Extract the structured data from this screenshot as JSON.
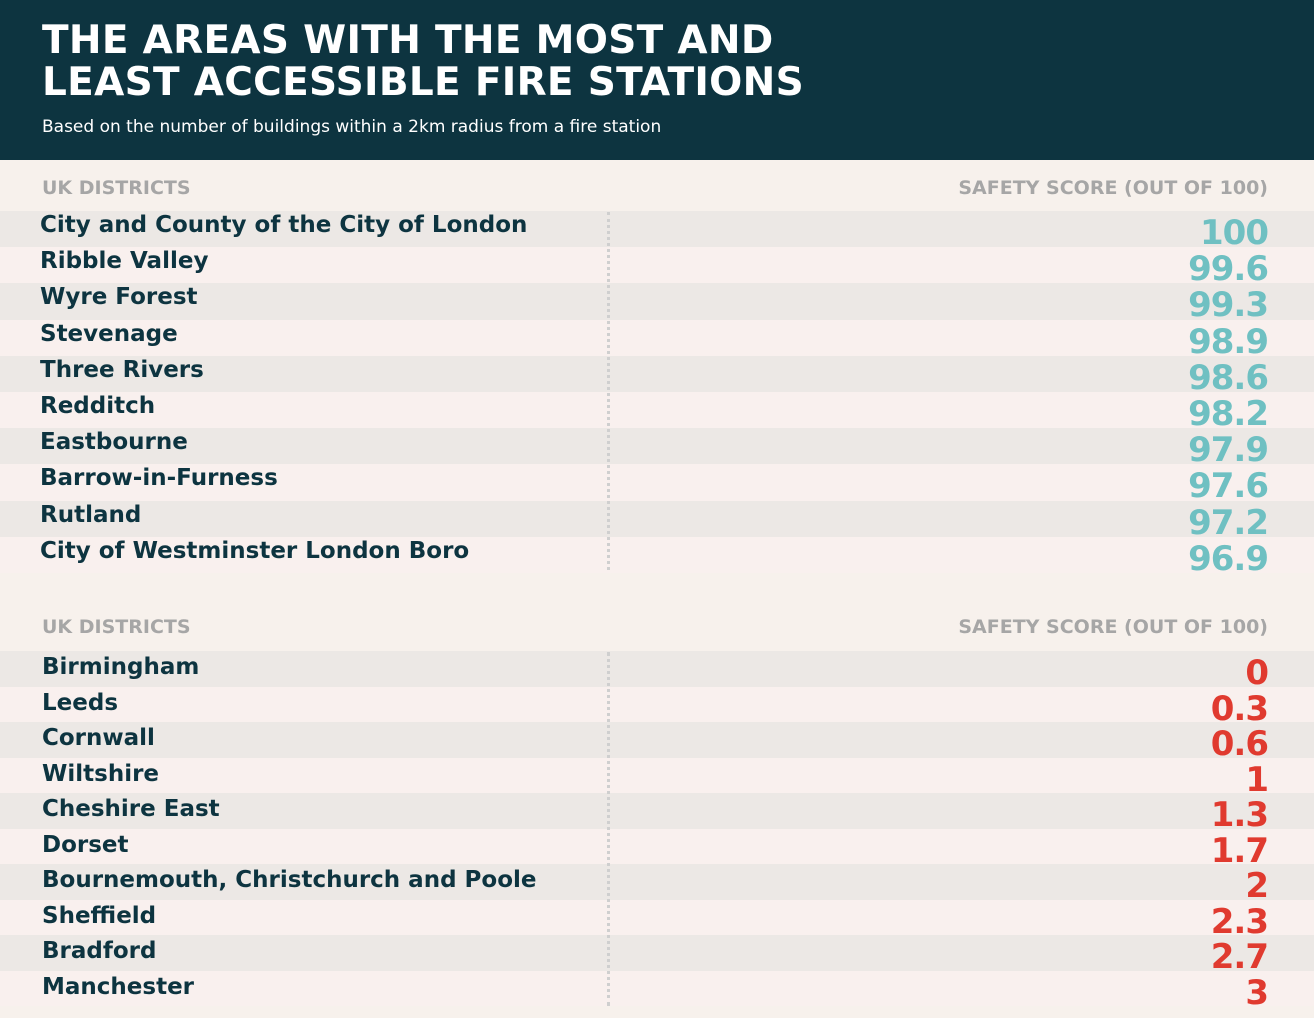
{
  "header": {
    "title_line1": "THE AREAS WITH THE MOST AND",
    "title_line2": "LEAST ACCESSIBLE FIRE STATIONS",
    "subtitle": "Based on the number of buildings within a 2km radius from a fire station"
  },
  "colors": {
    "header_bg": "#0d3440",
    "district_text": "#0d3440",
    "top_score": "#6fc0c2",
    "bottom_score": "#e03a2f",
    "column_header": "#a6a6a6"
  },
  "chart_data": [
    {
      "type": "table",
      "columns": [
        "UK DISTRICTS",
        "SAFETY SCORE (OUT OF 100)"
      ],
      "rows": [
        {
          "district": "City and County of the City of London",
          "score": "100"
        },
        {
          "district": "Ribble Valley",
          "score": "99.6"
        },
        {
          "district": "Wyre Forest",
          "score": "99.3"
        },
        {
          "district": "Stevenage",
          "score": "98.9"
        },
        {
          "district": "Three Rivers",
          "score": "98.6"
        },
        {
          "district": "Redditch",
          "score": "98.2"
        },
        {
          "district": "Eastbourne",
          "score": "97.9"
        },
        {
          "district": "Barrow-in-Furness",
          "score": "97.6"
        },
        {
          "district": "Rutland",
          "score": "97.2"
        },
        {
          "district": "City of Westminster London Boro",
          "score": "96.9"
        }
      ]
    },
    {
      "type": "table",
      "columns": [
        "UK DISTRICTS",
        "SAFETY SCORE (OUT OF 100)"
      ],
      "rows": [
        {
          "district": "Birmingham",
          "score": "0"
        },
        {
          "district": "Leeds",
          "score": "0.3"
        },
        {
          "district": "Cornwall",
          "score": "0.6"
        },
        {
          "district": "Wiltshire",
          "score": "1"
        },
        {
          "district": "Cheshire East",
          "score": "1.3"
        },
        {
          "district": "Dorset",
          "score": "1.7"
        },
        {
          "district": "Bournemouth, Christchurch and Poole",
          "score": "2"
        },
        {
          "district": "Sheffield",
          "score": "2.3"
        },
        {
          "district": "Bradford",
          "score": "2.7"
        },
        {
          "district": "Manchester",
          "score": "3"
        }
      ]
    }
  ]
}
